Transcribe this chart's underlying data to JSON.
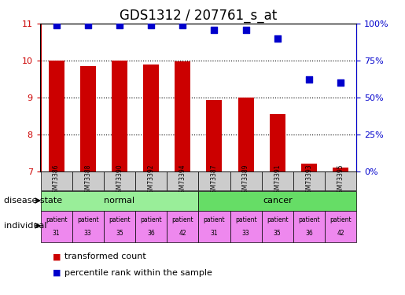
{
  "title": "GDS1312 / 207761_s_at",
  "samples": [
    "GSM73386",
    "GSM73388",
    "GSM73390",
    "GSM73392",
    "GSM73394",
    "GSM73387",
    "GSM73389",
    "GSM73391",
    "GSM73393",
    "GSM73395"
  ],
  "bar_values": [
    10.0,
    9.85,
    10.0,
    9.9,
    9.97,
    8.93,
    9.0,
    8.55,
    7.2,
    7.1
  ],
  "percentile_values": [
    99,
    99,
    99,
    99,
    99,
    96,
    96,
    90,
    62,
    60
  ],
  "disease_state": [
    "normal",
    "normal",
    "normal",
    "normal",
    "normal",
    "cancer",
    "cancer",
    "cancer",
    "cancer",
    "cancer"
  ],
  "individual": [
    "31",
    "33",
    "35",
    "36",
    "42",
    "31",
    "33",
    "35",
    "36",
    "42"
  ],
  "ylim": [
    7,
    11
  ],
  "yticks": [
    7,
    8,
    9,
    10,
    11
  ],
  "right_yticks": [
    0,
    25,
    50,
    75,
    100
  ],
  "bar_color": "#cc0000",
  "dot_color": "#0000cc",
  "normal_color": "#99ee99",
  "cancer_color": "#66dd66",
  "individual_color": "#ee88ee",
  "sample_bg_color": "#cccccc",
  "title_fontsize": 12,
  "tick_fontsize": 8,
  "legend_fontsize": 8,
  "label_fontsize": 8,
  "grid_color": "#000000",
  "bar_width": 0.5
}
